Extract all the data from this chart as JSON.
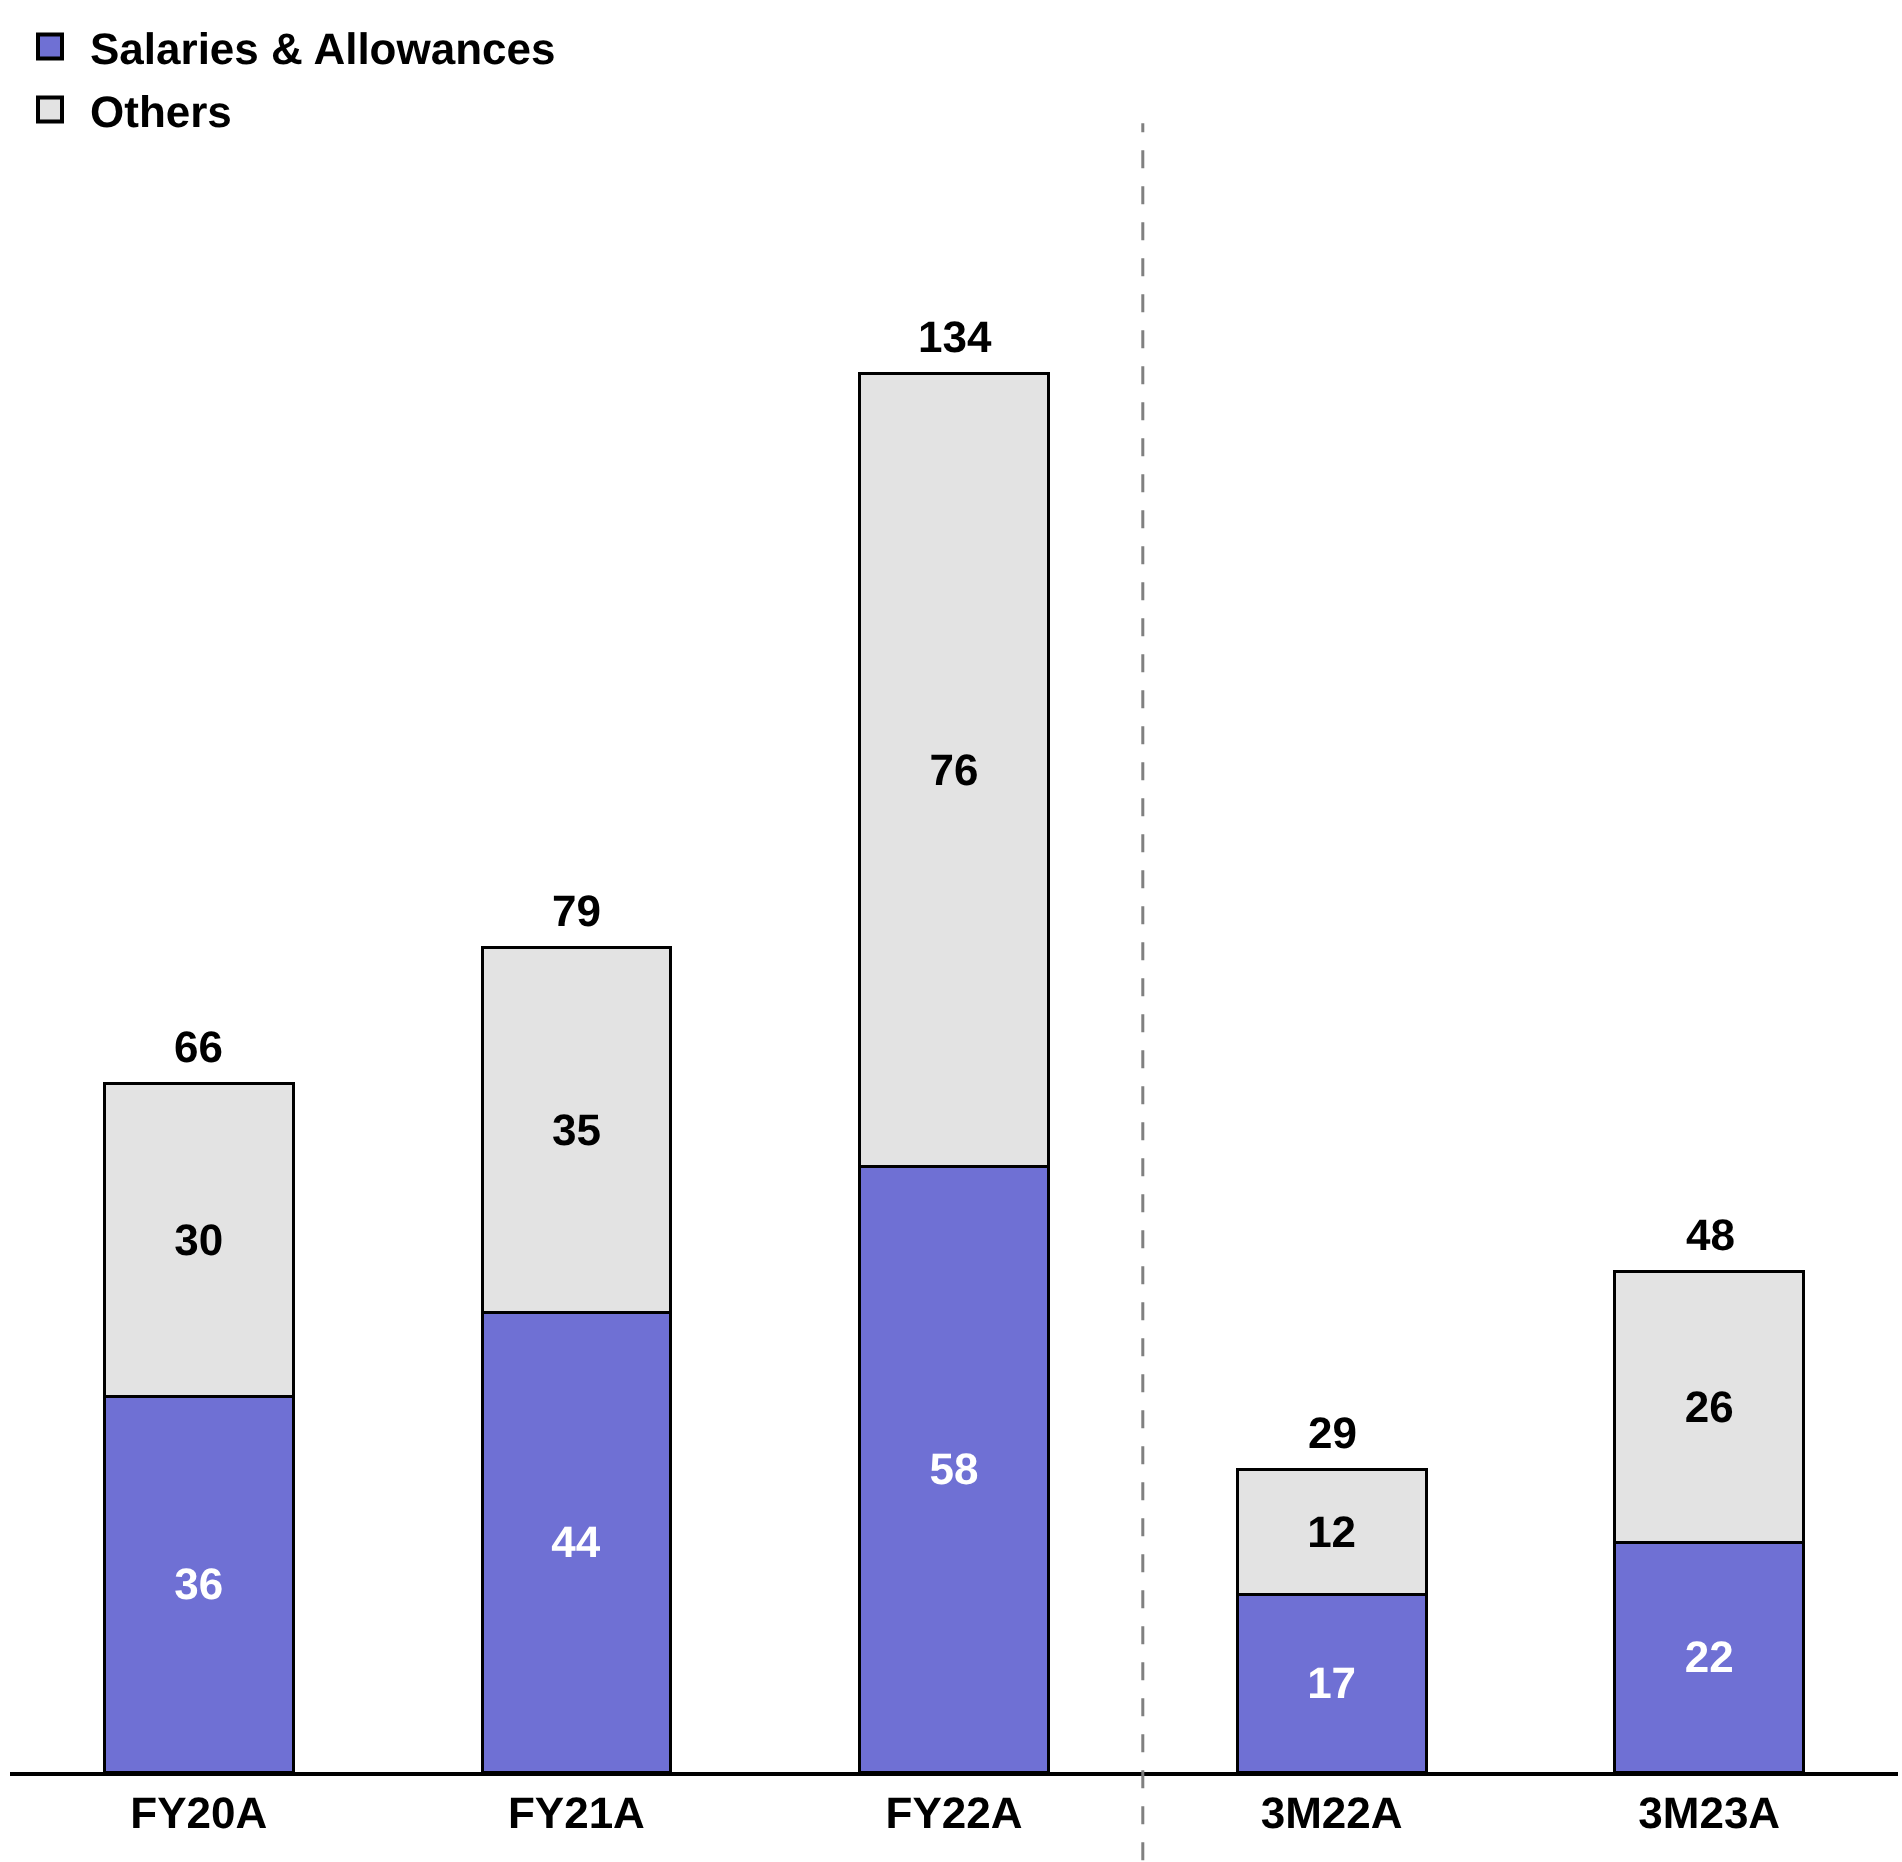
{
  "chart_data": {
    "type": "bar",
    "stacked": true,
    "categories": [
      "FY20A",
      "FY21A",
      "FY22A",
      "3M22A",
      "3M23A"
    ],
    "series": [
      {
        "name": "Salaries & Allowances",
        "color": "#6f70d4",
        "values": [
          36,
          44,
          58,
          17,
          22
        ]
      },
      {
        "name": "Others",
        "color": "#e3e3e3",
        "values": [
          30,
          35,
          76,
          12,
          26
        ]
      }
    ],
    "data_labels": true,
    "totals": [
      "66",
      "79",
      "134",
      "29",
      "48"
    ],
    "legend": "top left"
  }
}
